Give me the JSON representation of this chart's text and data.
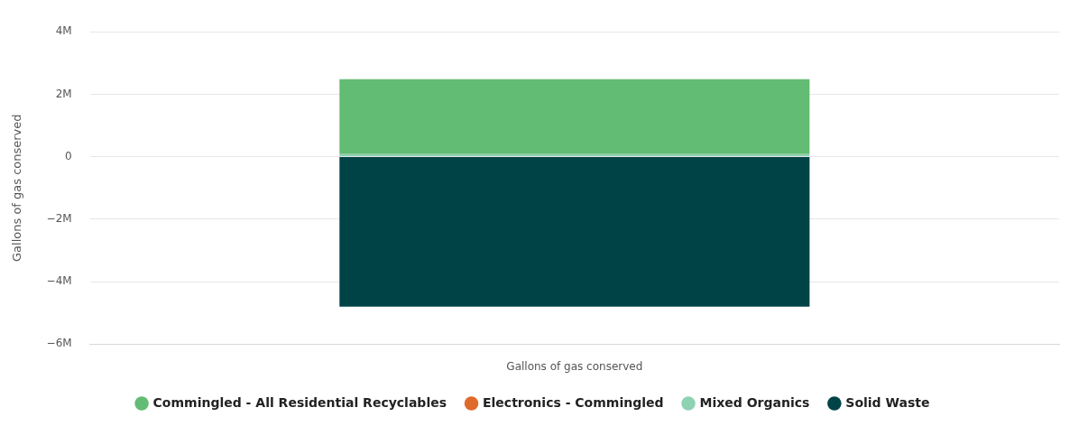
{
  "chart_data": {
    "type": "bar",
    "stacked": true,
    "ylabel": "Gallons of gas conserved",
    "xlabel": "Gallons of gas conserved",
    "categories": [
      null
    ],
    "series": [
      {
        "name": "Solid Waste",
        "color": "#004346",
        "values": [
          -4.8
        ]
      },
      {
        "name": "Mixed Organics",
        "color": "#8fd1b3",
        "values": [
          0.08
        ]
      },
      {
        "name": "Electronics - Commingled",
        "color": "#e06a2b",
        "values": [
          0
        ]
      },
      {
        "name": "Commingled - All Residential Recyclables",
        "color": "#63bc73",
        "values": [
          2.4
        ]
      }
    ],
    "ylim": [
      -6,
      4
    ],
    "yticks": [
      {
        "value": -6,
        "label": "−6M"
      },
      {
        "value": -4,
        "label": "−4M"
      },
      {
        "value": -2,
        "label": "−2M"
      },
      0,
      {
        "value": 2,
        "label": "2M"
      },
      {
        "value": 4,
        "label": "4M"
      }
    ],
    "grid": "y",
    "legend": "bottom"
  }
}
